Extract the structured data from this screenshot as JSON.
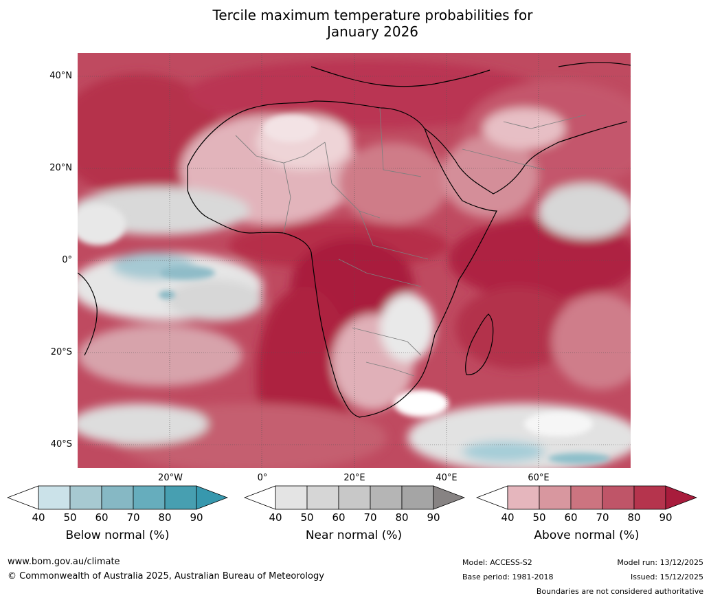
{
  "title": {
    "line1": "Tercile maximum temperature probabilities for",
    "line2": "January 2026"
  },
  "map": {
    "region": "Africa",
    "lat_labels": [
      "40°N",
      "20°N",
      "0°",
      "20°S",
      "40°S"
    ],
    "lon_labels": [
      "20°W",
      "0°",
      "20°E",
      "40°E",
      "60°E"
    ]
  },
  "colorbars": [
    {
      "name": "below",
      "title": "Below normal (%)",
      "ticks": [
        "40",
        "50",
        "60",
        "70",
        "80",
        "90"
      ],
      "colors": [
        "#ffffff",
        "#cbe2e9",
        "#a7c9d1",
        "#86b8c4",
        "#66adbd",
        "#479fb1",
        "#3798ae"
      ]
    },
    {
      "name": "near",
      "title": "Near normal (%)",
      "ticks": [
        "40",
        "50",
        "60",
        "70",
        "80",
        "90"
      ],
      "colors": [
        "#ffffff",
        "#e4e4e4",
        "#d6d6d6",
        "#c8c8c8",
        "#b5b5b5",
        "#a5a5a5",
        "#878383"
      ]
    },
    {
      "name": "above",
      "title": "Above normal (%)",
      "ticks": [
        "40",
        "50",
        "60",
        "70",
        "80",
        "90"
      ],
      "colors": [
        "#ffffff",
        "#e5b6bd",
        "#d8979f",
        "#cc7480",
        "#bf5568",
        "#b5344d",
        "#a81c3c"
      ]
    }
  ],
  "footer": {
    "url": "www.bom.gov.au/climate",
    "copyright": "© Commonwealth of Australia 2025, Australian Bureau of Meteorology",
    "model": "Model: ACCESS-S2",
    "base_period": "Base period: 1981-2018",
    "model_run": "Model run: 13/12/2025",
    "issued": "Issued: 15/12/2025",
    "disclaimer": "Boundaries are not considered authoritative"
  }
}
